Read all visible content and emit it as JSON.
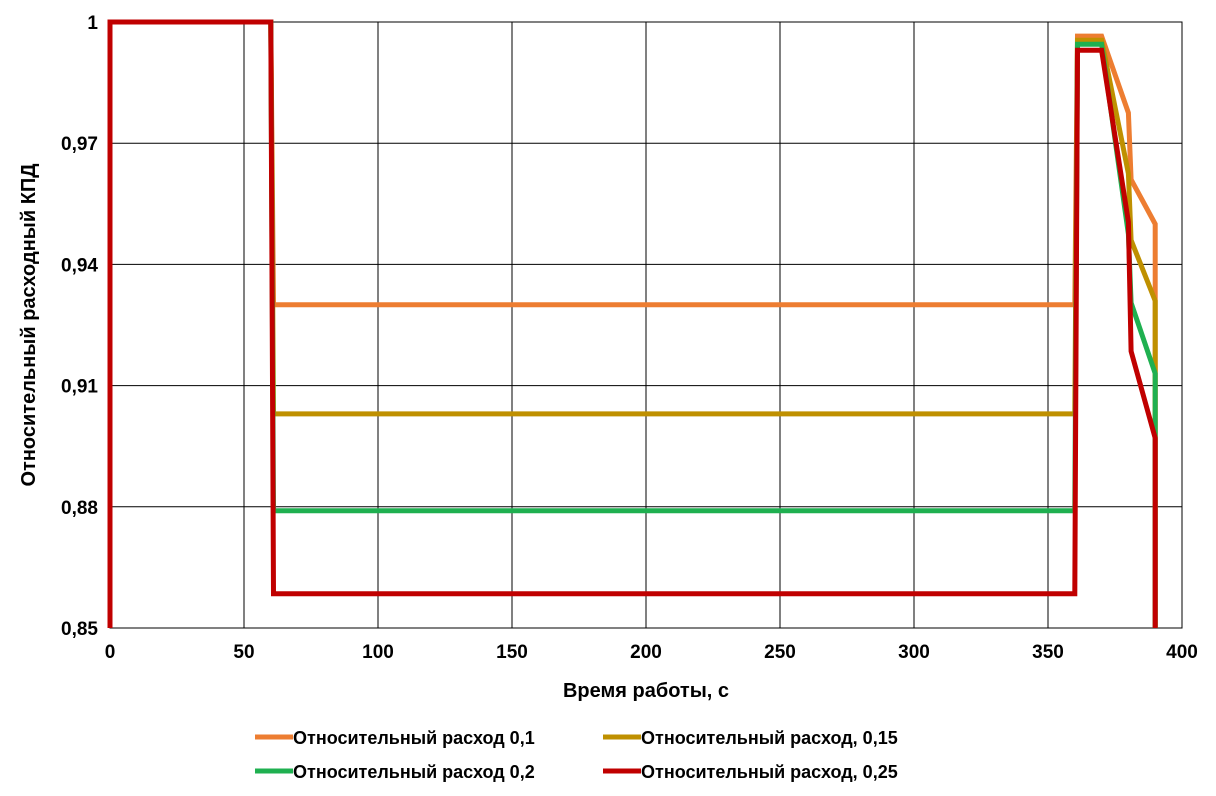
{
  "chart_data": {
    "type": "line",
    "xlabel": "Время работы, с",
    "ylabel": "Относительный расходный КПД",
    "xlim": [
      0,
      400
    ],
    "ylim": [
      0.85,
      1
    ],
    "x_ticks": [
      0,
      50,
      100,
      150,
      200,
      250,
      300,
      350,
      400
    ],
    "x_tick_labels": [
      "0",
      "50",
      "100",
      "150",
      "200",
      "250",
      "300",
      "350",
      "400"
    ],
    "y_ticks": [
      0.85,
      0.88,
      0.91,
      0.94,
      0.97,
      1
    ],
    "y_tick_labels": [
      "0,85",
      "0,88",
      "0,91",
      "0,94",
      "0,97",
      "1"
    ],
    "grid": true,
    "legend_position": "bottom",
    "series": [
      {
        "name": "Относительный расход 0,1",
        "color": "#ED7D31",
        "points": [
          [
            0,
            0.85
          ],
          [
            0,
            1
          ],
          [
            60,
            1
          ],
          [
            61,
            0.93
          ],
          [
            360,
            0.93
          ],
          [
            361,
            0.9965
          ],
          [
            370,
            0.9965
          ],
          [
            380,
            0.9775
          ],
          [
            381,
            0.961
          ],
          [
            390,
            0.95
          ],
          [
            390,
            0.85
          ]
        ]
      },
      {
        "name": "Относительный расход, 0,15",
        "color": "#BF9000",
        "points": [
          [
            0,
            0.85
          ],
          [
            0,
            1
          ],
          [
            60,
            1
          ],
          [
            61,
            0.903
          ],
          [
            360,
            0.903
          ],
          [
            361,
            0.9955
          ],
          [
            370,
            0.9955
          ],
          [
            380,
            0.9625
          ],
          [
            381,
            0.946
          ],
          [
            390,
            0.931
          ],
          [
            390,
            0.85
          ]
        ]
      },
      {
        "name": "Относительный расход 0,2",
        "color": "#1FB050",
        "points": [
          [
            0,
            0.85
          ],
          [
            0,
            1
          ],
          [
            60,
            1
          ],
          [
            61,
            0.879
          ],
          [
            360,
            0.879
          ],
          [
            361,
            0.9945
          ],
          [
            370,
            0.9945
          ],
          [
            380,
            0.9475
          ],
          [
            381,
            0.9305
          ],
          [
            390,
            0.913
          ],
          [
            390,
            0.85
          ]
        ]
      },
      {
        "name": "Относительный расход, 0,25",
        "color": "#C00000",
        "points": [
          [
            0,
            0.85
          ],
          [
            0,
            1
          ],
          [
            60,
            1
          ],
          [
            61,
            0.8585
          ],
          [
            360,
            0.8585
          ],
          [
            361,
            0.993
          ],
          [
            370,
            0.993
          ],
          [
            380,
            0.9505
          ],
          [
            381,
            0.9185
          ],
          [
            390,
            0.897
          ],
          [
            390,
            0.85
          ]
        ]
      }
    ]
  }
}
